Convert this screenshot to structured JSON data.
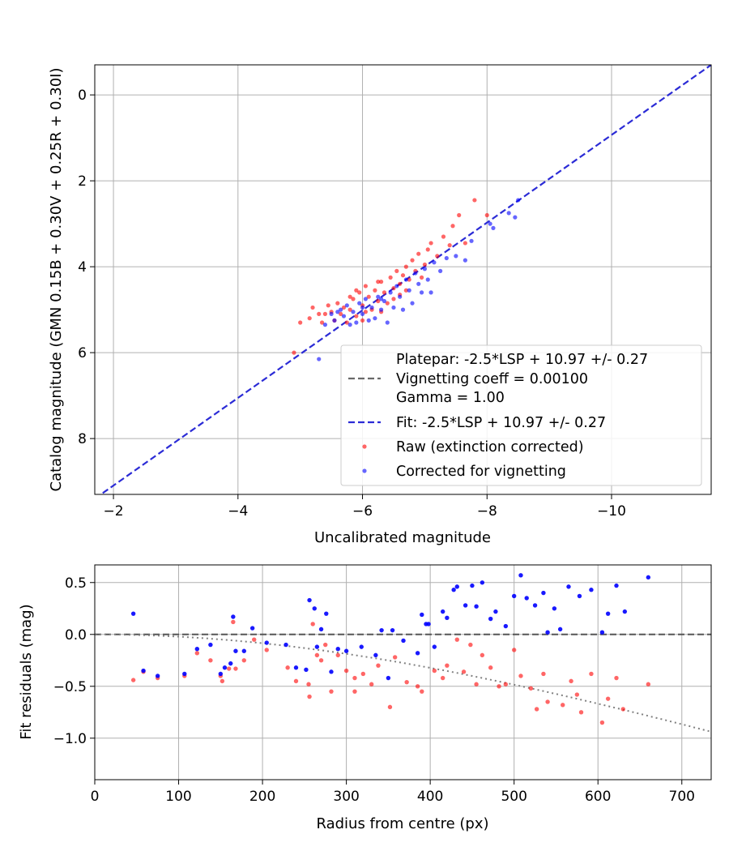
{
  "chart_data": [
    {
      "type": "scatter",
      "title": "",
      "xlabel": "Uncalibrated magnitude",
      "ylabel": "Catalog magnitude (GMN 0.15B + 0.30V + 0.25R + 0.30I)",
      "xlim": [
        -1.7,
        -11.6
      ],
      "ylim": [
        9.3,
        -0.7
      ],
      "x_inverted": true,
      "y_inverted": true,
      "xticks": [
        -2,
        -4,
        -6,
        -8,
        -10
      ],
      "xtick_labels": [
        "−2",
        "−4",
        "−6",
        "−8",
        "−10"
      ],
      "yticks": [
        0,
        2,
        4,
        6,
        8
      ],
      "ytick_labels": [
        "0",
        "2",
        "4",
        "6",
        "8"
      ],
      "grid": true,
      "legend_position": "lower-right",
      "legend": [
        {
          "label": "Platepar: -2.5*LSP + 10.97 +/- 0.27",
          "kind": "none"
        },
        {
          "label": "Vignetting coeff = 0.00100",
          "kind": "dashed-line",
          "color": "#696969"
        },
        {
          "label": "Gamma = 1.00",
          "kind": "none"
        },
        {
          "label": "Fit: -2.5*LSP + 10.97 +/- 0.27",
          "kind": "dashed-line",
          "color": "#2b2bd6"
        },
        {
          "label": "Raw (extinction corrected)",
          "kind": "marker",
          "color": "#ff0000"
        },
        {
          "label": "Corrected for vignetting",
          "kind": "marker",
          "color": "#0000ff"
        }
      ],
      "lines": [
        {
          "name": "Fit",
          "style": "dashed",
          "color": "#2b2bd6",
          "x": [
            -1.7,
            -11.6
          ],
          "y": [
            9.4,
            -0.7
          ]
        }
      ],
      "series": [
        {
          "name": "Raw (extinction corrected)",
          "color": "#ff0000",
          "points": [
            [
              -4.9,
              6.0
            ],
            [
              -5.0,
              5.3
            ],
            [
              -5.15,
              5.2
            ],
            [
              -5.2,
              4.95
            ],
            [
              -5.3,
              5.1
            ],
            [
              -5.35,
              5.3
            ],
            [
              -5.4,
              5.1
            ],
            [
              -5.45,
              4.9
            ],
            [
              -5.5,
              5.05
            ],
            [
              -5.55,
              5.25
            ],
            [
              -5.6,
              4.85
            ],
            [
              -5.65,
              5.1
            ],
            [
              -5.7,
              4.95
            ],
            [
              -5.75,
              5.3
            ],
            [
              -5.8,
              4.7
            ],
            [
              -5.8,
              5.0
            ],
            [
              -5.85,
              4.75
            ],
            [
              -5.9,
              5.15
            ],
            [
              -5.95,
              4.6
            ],
            [
              -6.0,
              4.9
            ],
            [
              -6.0,
              5.25
            ],
            [
              -6.05,
              4.45
            ],
            [
              -6.1,
              4.7
            ],
            [
              -6.15,
              5.0
            ],
            [
              -6.2,
              4.55
            ],
            [
              -6.25,
              4.8
            ],
            [
              -6.3,
              4.35
            ],
            [
              -6.3,
              5.05
            ],
            [
              -6.35,
              4.6
            ],
            [
              -6.4,
              4.85
            ],
            [
              -6.45,
              4.25
            ],
            [
              -6.5,
              4.5
            ],
            [
              -6.5,
              4.75
            ],
            [
              -6.55,
              4.1
            ],
            [
              -6.6,
              4.4
            ],
            [
              -6.65,
              4.2
            ],
            [
              -6.7,
              4.0
            ],
            [
              -6.7,
              4.55
            ],
            [
              -6.75,
              4.3
            ],
            [
              -6.8,
              3.85
            ],
            [
              -6.85,
              4.1
            ],
            [
              -6.9,
              3.7
            ],
            [
              -6.95,
              4.25
            ],
            [
              -7.0,
              3.95
            ],
            [
              -7.05,
              3.6
            ],
            [
              -7.1,
              3.45
            ],
            [
              -7.2,
              3.75
            ],
            [
              -7.3,
              3.3
            ],
            [
              -7.4,
              3.5
            ],
            [
              -7.45,
              3.05
            ],
            [
              -7.55,
              2.8
            ],
            [
              -7.65,
              3.45
            ],
            [
              -7.8,
              2.45
            ],
            [
              -8.0,
              2.8
            ],
            [
              -6.05,
              5.05
            ],
            [
              -5.9,
              4.55
            ],
            [
              -6.25,
              4.35
            ],
            [
              -6.6,
              4.65
            ]
          ]
        },
        {
          "name": "Corrected for vignetting",
          "color": "#0000ff",
          "points": [
            [
              -5.3,
              6.15
            ],
            [
              -5.4,
              5.35
            ],
            [
              -5.5,
              5.1
            ],
            [
              -5.55,
              5.25
            ],
            [
              -5.65,
              5.0
            ],
            [
              -5.7,
              5.15
            ],
            [
              -5.75,
              4.9
            ],
            [
              -5.8,
              5.35
            ],
            [
              -5.85,
              5.05
            ],
            [
              -5.9,
              5.3
            ],
            [
              -5.95,
              4.85
            ],
            [
              -6.0,
              5.1
            ],
            [
              -6.05,
              4.75
            ],
            [
              -6.1,
              5.25
            ],
            [
              -6.15,
              4.95
            ],
            [
              -6.2,
              5.2
            ],
            [
              -6.25,
              4.7
            ],
            [
              -6.3,
              5.0
            ],
            [
              -6.35,
              4.8
            ],
            [
              -6.4,
              5.3
            ],
            [
              -6.45,
              4.6
            ],
            [
              -6.5,
              4.95
            ],
            [
              -6.55,
              4.45
            ],
            [
              -6.6,
              4.7
            ],
            [
              -6.65,
              5.0
            ],
            [
              -6.7,
              4.3
            ],
            [
              -6.75,
              4.55
            ],
            [
              -6.8,
              4.85
            ],
            [
              -6.85,
              4.15
            ],
            [
              -6.9,
              4.4
            ],
            [
              -6.95,
              4.6
            ],
            [
              -7.0,
              4.05
            ],
            [
              -7.05,
              4.3
            ],
            [
              -7.1,
              4.6
            ],
            [
              -7.15,
              3.9
            ],
            [
              -7.25,
              4.1
            ],
            [
              -7.35,
              3.8
            ],
            [
              -7.5,
              3.75
            ],
            [
              -7.65,
              3.85
            ],
            [
              -7.75,
              3.4
            ],
            [
              -8.05,
              3.0
            ],
            [
              -8.1,
              3.1
            ],
            [
              -8.35,
              2.75
            ],
            [
              -8.45,
              2.85
            ],
            [
              -8.5,
              2.45
            ],
            [
              -5.6,
              5.05
            ],
            [
              -6.0,
              4.95
            ],
            [
              -6.3,
              4.75
            ]
          ]
        }
      ]
    },
    {
      "type": "scatter",
      "title": "",
      "xlabel": "Radius from centre (px)",
      "ylabel": "Fit residuals (mag)",
      "xlim": [
        0,
        735
      ],
      "ylim": [
        -1.4,
        0.67
      ],
      "xticks": [
        0,
        100,
        200,
        300,
        400,
        500,
        600,
        700
      ],
      "xtick_labels": [
        "0",
        "100",
        "200",
        "300",
        "400",
        "500",
        "600",
        "700"
      ],
      "yticks": [
        0.5,
        0.0,
        -0.5,
        -1.0
      ],
      "ytick_labels": [
        "0.5",
        "0.0",
        "−0.5",
        "−1.0"
      ],
      "grid": true,
      "lines": [
        {
          "name": "zero",
          "style": "dashed",
          "color": "#555555",
          "x": [
            0,
            735
          ],
          "y": [
            0,
            0
          ]
        },
        {
          "name": "vignetting",
          "style": "dotted",
          "color": "#808080",
          "function": "-2.5*log10(cos(atan(0.00100*r))^4)",
          "x_range": [
            0,
            735
          ]
        }
      ],
      "series": [
        {
          "name": "Raw (extinction corrected)",
          "color": "#ff0000",
          "points": [
            [
              46,
              -0.44
            ],
            [
              58,
              -0.36
            ],
            [
              75,
              -0.42
            ],
            [
              107,
              -0.4
            ],
            [
              122,
              -0.18
            ],
            [
              138,
              -0.25
            ],
            [
              150,
              -0.4
            ],
            [
              152,
              -0.45
            ],
            [
              160,
              -0.33
            ],
            [
              165,
              0.12
            ],
            [
              168,
              -0.33
            ],
            [
              178,
              -0.25
            ],
            [
              190,
              -0.05
            ],
            [
              205,
              -0.15
            ],
            [
              230,
              -0.32
            ],
            [
              240,
              -0.45
            ],
            [
              255,
              -0.48
            ],
            [
              256,
              -0.6
            ],
            [
              260,
              0.1
            ],
            [
              265,
              -0.2
            ],
            [
              270,
              -0.25
            ],
            [
              275,
              -0.1
            ],
            [
              282,
              -0.55
            ],
            [
              290,
              -0.2
            ],
            [
              300,
              -0.35
            ],
            [
              310,
              -0.55
            ],
            [
              320,
              -0.38
            ],
            [
              330,
              -0.48
            ],
            [
              338,
              -0.3
            ],
            [
              352,
              -0.7
            ],
            [
              358,
              -0.22
            ],
            [
              372,
              -0.46
            ],
            [
              385,
              -0.5
            ],
            [
              390,
              -0.55
            ],
            [
              405,
              -0.35
            ],
            [
              415,
              -0.42
            ],
            [
              420,
              -0.3
            ],
            [
              432,
              -0.05
            ],
            [
              448,
              -0.1
            ],
            [
              455,
              -0.48
            ],
            [
              462,
              -0.2
            ],
            [
              472,
              -0.32
            ],
            [
              482,
              -0.5
            ],
            [
              490,
              -0.48
            ],
            [
              500,
              -0.15
            ],
            [
              508,
              -0.4
            ],
            [
              520,
              -0.52
            ],
            [
              527,
              -0.72
            ],
            [
              535,
              -0.38
            ],
            [
              540,
              -0.65
            ],
            [
              558,
              -0.68
            ],
            [
              568,
              -0.45
            ],
            [
              575,
              -0.58
            ],
            [
              580,
              -0.75
            ],
            [
              592,
              -0.38
            ],
            [
              605,
              -0.85
            ],
            [
              612,
              -0.62
            ],
            [
              622,
              -0.42
            ],
            [
              630,
              -0.72
            ],
            [
              660,
              -0.48
            ],
            [
              440,
              -0.36
            ],
            [
              310,
              -0.42
            ]
          ]
        },
        {
          "name": "Corrected for vignetting",
          "color": "#0000ff",
          "points": [
            [
              46,
              0.2
            ],
            [
              58,
              -0.35
            ],
            [
              75,
              -0.4
            ],
            [
              107,
              -0.38
            ],
            [
              122,
              -0.14
            ],
            [
              138,
              -0.1
            ],
            [
              150,
              -0.38
            ],
            [
              155,
              -0.32
            ],
            [
              162,
              -0.28
            ],
            [
              165,
              0.17
            ],
            [
              168,
              -0.16
            ],
            [
              178,
              -0.16
            ],
            [
              188,
              0.06
            ],
            [
              205,
              -0.08
            ],
            [
              228,
              -0.1
            ],
            [
              240,
              -0.32
            ],
            [
              252,
              -0.34
            ],
            [
              256,
              0.33
            ],
            [
              262,
              0.25
            ],
            [
              265,
              -0.12
            ],
            [
              270,
              0.05
            ],
            [
              276,
              0.2
            ],
            [
              282,
              -0.36
            ],
            [
              290,
              -0.14
            ],
            [
              300,
              -0.16
            ],
            [
              318,
              -0.12
            ],
            [
              335,
              -0.2
            ],
            [
              342,
              0.04
            ],
            [
              350,
              -0.42
            ],
            [
              355,
              0.04
            ],
            [
              368,
              -0.06
            ],
            [
              385,
              -0.18
            ],
            [
              390,
              0.19
            ],
            [
              395,
              0.1
            ],
            [
              405,
              -0.12
            ],
            [
              415,
              0.22
            ],
            [
              420,
              0.16
            ],
            [
              428,
              0.43
            ],
            [
              432,
              0.46
            ],
            [
              450,
              0.47
            ],
            [
              455,
              0.27
            ],
            [
              462,
              0.5
            ],
            [
              472,
              0.15
            ],
            [
              478,
              0.22
            ],
            [
              490,
              0.08
            ],
            [
              500,
              0.37
            ],
            [
              508,
              0.57
            ],
            [
              515,
              0.35
            ],
            [
              525,
              0.28
            ],
            [
              535,
              0.4
            ],
            [
              540,
              0.02
            ],
            [
              548,
              0.25
            ],
            [
              555,
              0.05
            ],
            [
              565,
              0.46
            ],
            [
              578,
              0.37
            ],
            [
              592,
              0.43
            ],
            [
              605,
              0.02
            ],
            [
              612,
              0.2
            ],
            [
              622,
              0.47
            ],
            [
              632,
              0.22
            ],
            [
              660,
              0.55
            ],
            [
              398,
              0.1
            ],
            [
              442,
              0.28
            ]
          ]
        }
      ]
    }
  ]
}
